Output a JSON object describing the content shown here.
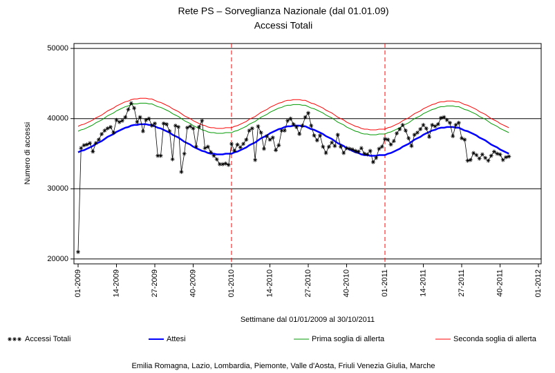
{
  "chart_data": {
    "type": "line",
    "title": "Rete PS – Sorveglianza Nazionale (dal 01.01.09)",
    "subtitle": "Accessi Totali",
    "x_label": "Settimane dal 01/01/2009 al 30/10/2011",
    "y_label": "Numero di accessi",
    "footnote": "Emilia Romagna, Lazio, Lombardia, Piemonte, Valle d'Aosta, Friuli Venezia Giulia, Marche",
    "categories": [
      "01-2009",
      null,
      null,
      null,
      null,
      null,
      null,
      null,
      null,
      null,
      null,
      null,
      null,
      "14-2009",
      null,
      null,
      null,
      null,
      null,
      null,
      null,
      null,
      null,
      null,
      null,
      null,
      "27-2009",
      null,
      null,
      null,
      null,
      null,
      null,
      null,
      null,
      null,
      null,
      null,
      null,
      "40-2009",
      null,
      null,
      null,
      null,
      null,
      null,
      null,
      null,
      null,
      null,
      null,
      null,
      "01-2010",
      null,
      null,
      null,
      null,
      null,
      null,
      null,
      null,
      null,
      null,
      null,
      null,
      "14-2010",
      null,
      null,
      null,
      null,
      null,
      null,
      null,
      null,
      null,
      null,
      null,
      null,
      "27-2010",
      null,
      null,
      null,
      null,
      null,
      null,
      null,
      null,
      null,
      null,
      null,
      null,
      "40-2010",
      null,
      null,
      null,
      null,
      null,
      null,
      null,
      null,
      null,
      null,
      null,
      null,
      "01-2011",
      null,
      null,
      null,
      null,
      null,
      null,
      null,
      null,
      null,
      null,
      null,
      null,
      "14-2011",
      null,
      null,
      null,
      null,
      null,
      null,
      null,
      null,
      null,
      null,
      null,
      null,
      "27-2011",
      null,
      null,
      null,
      null,
      null,
      null,
      null,
      null,
      null,
      null,
      null,
      null,
      "40-2011",
      null,
      null,
      null,
      null,
      null,
      null,
      null,
      null,
      null,
      null,
      null,
      null,
      "01-2012"
    ],
    "ylim": [
      19300,
      50700
    ],
    "yticks": [
      20000,
      30000,
      40000,
      50000
    ],
    "grid": true,
    "vlines": [
      52,
      104
    ],
    "vline_color": "#ff0000",
    "legend": "bottom",
    "series": [
      {
        "name": "Accessi Totali",
        "color": "#000000",
        "marker": "asterisk",
        "values": [
          21000,
          35800,
          36200,
          36300,
          36500,
          35300,
          36500,
          37000,
          37800,
          38300,
          38600,
          38800,
          38000,
          39800,
          39500,
          39700,
          40200,
          41300,
          42200,
          41500,
          39500,
          40200,
          38200,
          39800,
          40000,
          39000,
          39300,
          34700,
          34700,
          39300,
          39200,
          38200,
          34200,
          39000,
          38800,
          32400,
          35000,
          38700,
          38900,
          38600,
          36000,
          38800,
          39700,
          35800,
          36000,
          35200,
          34700,
          34200,
          33500,
          33500,
          33600,
          33400,
          36400,
          35400,
          36300,
          35900,
          36400,
          37000,
          38300,
          38600,
          34100,
          38900,
          38000,
          35700,
          37500,
          37000,
          37300,
          35500,
          36200,
          38300,
          38300,
          39700,
          40000,
          39200,
          38800,
          37800,
          39000,
          40200,
          40800,
          39000,
          37600,
          36900,
          37600,
          36000,
          35100,
          36000,
          36600,
          36100,
          37700,
          36000,
          35100,
          35800,
          35700,
          35600,
          35400,
          35300,
          35800,
          35000,
          34900,
          35400,
          33800,
          34400,
          35700,
          36000,
          37100,
          37000,
          36300,
          36800,
          37900,
          38500,
          39100,
          38300,
          37200,
          36100,
          37700,
          38000,
          38500,
          39100,
          38600,
          37400,
          39100,
          38900,
          39200,
          40100,
          40200,
          39800,
          39400,
          37500,
          39100,
          39400,
          37200,
          37000,
          34000,
          34100,
          35100,
          34800,
          34300,
          34900,
          34400,
          34000,
          34700,
          35300,
          35000,
          34900,
          34100,
          34500,
          34600,
          null,
          null,
          null,
          null,
          null,
          null,
          null,
          null,
          null,
          null
        ]
      },
      {
        "name": "Attesi",
        "color": "#0000ff",
        "values": [
          35200,
          35400,
          35500,
          35700,
          35900,
          36100,
          36400,
          36600,
          36800,
          37100,
          37400,
          37600,
          37800,
          38100,
          38300,
          38500,
          38700,
          38800,
          39000,
          39100,
          39100,
          39200,
          39200,
          39200,
          39100,
          39100,
          38900,
          38700,
          38600,
          38400,
          38200,
          38000,
          37700,
          37500,
          37300,
          37000,
          36700,
          36500,
          36300,
          36000,
          35800,
          35600,
          35400,
          35300,
          35100,
          35000,
          35000,
          34900,
          34900,
          34900,
          35000,
          35000,
          35000,
          35200,
          35300,
          35500,
          35700,
          35900,
          36200,
          36400,
          36600,
          36900,
          37200,
          37400,
          37600,
          37900,
          38100,
          38300,
          38500,
          38600,
          38800,
          38900,
          38900,
          39000,
          39000,
          39000,
          38900,
          38900,
          38700,
          38500,
          38400,
          38200,
          38000,
          37800,
          37500,
          37300,
          37100,
          36800,
          36500,
          36300,
          36100,
          35800,
          35600,
          35400,
          35200,
          35100,
          34900,
          34800,
          34800,
          34700,
          34700,
          34700,
          34800,
          34800,
          34800,
          35000,
          35100,
          35300,
          35500,
          35700,
          36000,
          36200,
          36400,
          36700,
          37000,
          37200,
          37400,
          37700,
          37900,
          38100,
          38300,
          38400,
          38600,
          38700,
          38700,
          38800,
          38800,
          38800,
          38700,
          38700,
          38500,
          38300,
          38200,
          38000,
          37800,
          37600,
          37300,
          37100,
          36900,
          36600,
          36300,
          36100,
          35900,
          35600,
          35400,
          35200,
          35000,
          null,
          null,
          null,
          null,
          null,
          null,
          null,
          null,
          null,
          null
        ]
      },
      {
        "name": "Prima soglia di allerta",
        "color": "#009900",
        "values": [
          38200,
          38400,
          38500,
          38700,
          38900,
          39100,
          39400,
          39600,
          39800,
          40100,
          40400,
          40600,
          40800,
          41100,
          41300,
          41500,
          41700,
          41800,
          42000,
          42100,
          42100,
          42200,
          42200,
          42200,
          42100,
          42100,
          41900,
          41700,
          41600,
          41400,
          41200,
          41000,
          40700,
          40500,
          40300,
          40000,
          39700,
          39500,
          39300,
          39000,
          38800,
          38600,
          38400,
          38300,
          38100,
          38000,
          38000,
          37900,
          37900,
          37900,
          38000,
          38000,
          38000,
          38200,
          38300,
          38500,
          38700,
          38900,
          39200,
          39400,
          39600,
          39900,
          40200,
          40400,
          40600,
          40900,
          41100,
          41300,
          41500,
          41600,
          41800,
          41900,
          41900,
          42000,
          42000,
          42000,
          41900,
          41900,
          41700,
          41500,
          41400,
          41200,
          41000,
          40800,
          40500,
          40300,
          40100,
          39800,
          39500,
          39300,
          39100,
          38800,
          38600,
          38400,
          38200,
          38100,
          37900,
          37800,
          37800,
          37700,
          37700,
          37700,
          37800,
          37800,
          37800,
          38000,
          38100,
          38300,
          38500,
          38700,
          39000,
          39200,
          39400,
          39700,
          40000,
          40200,
          40400,
          40700,
          40900,
          41100,
          41300,
          41400,
          41600,
          41700,
          41700,
          41800,
          41800,
          41800,
          41700,
          41700,
          41500,
          41300,
          41200,
          41000,
          40800,
          40600,
          40300,
          40100,
          39900,
          39600,
          39300,
          39100,
          38900,
          38600,
          38400,
          38200,
          38000,
          null,
          null,
          null,
          null,
          null,
          null,
          null,
          null,
          null,
          null
        ]
      },
      {
        "name": "Seconda soglia di allerta",
        "color": "#ff0000",
        "values": [
          38900,
          39100,
          39200,
          39400,
          39600,
          39800,
          40100,
          40300,
          40500,
          40800,
          41100,
          41300,
          41500,
          41800,
          42000,
          42200,
          42400,
          42500,
          42700,
          42800,
          42800,
          42900,
          42900,
          42900,
          42800,
          42800,
          42600,
          42400,
          42300,
          42100,
          41900,
          41700,
          41400,
          41200,
          41000,
          40700,
          40400,
          40200,
          40000,
          39700,
          39500,
          39300,
          39100,
          39000,
          38800,
          38700,
          38700,
          38600,
          38600,
          38600,
          38700,
          38700,
          38700,
          38900,
          39000,
          39200,
          39400,
          39600,
          39900,
          40100,
          40300,
          40600,
          40900,
          41100,
          41300,
          41600,
          41800,
          42000,
          42200,
          42300,
          42500,
          42600,
          42600,
          42700,
          42700,
          42700,
          42600,
          42600,
          42400,
          42200,
          42100,
          41900,
          41700,
          41500,
          41200,
          41000,
          40800,
          40500,
          40200,
          40000,
          39800,
          39500,
          39300,
          39100,
          38900,
          38800,
          38600,
          38500,
          38500,
          38400,
          38400,
          38400,
          38500,
          38500,
          38500,
          38700,
          38800,
          39000,
          39200,
          39400,
          39700,
          39900,
          40100,
          40400,
          40700,
          40900,
          41100,
          41400,
          41600,
          41800,
          42000,
          42100,
          42300,
          42400,
          42400,
          42500,
          42500,
          42500,
          42400,
          42400,
          42200,
          42000,
          41900,
          41700,
          41500,
          41300,
          41000,
          40800,
          40600,
          40300,
          40000,
          39800,
          39600,
          39300,
          39100,
          38900,
          38700,
          null,
          null,
          null,
          null,
          null,
          null,
          null,
          null,
          null,
          null
        ]
      }
    ]
  }
}
